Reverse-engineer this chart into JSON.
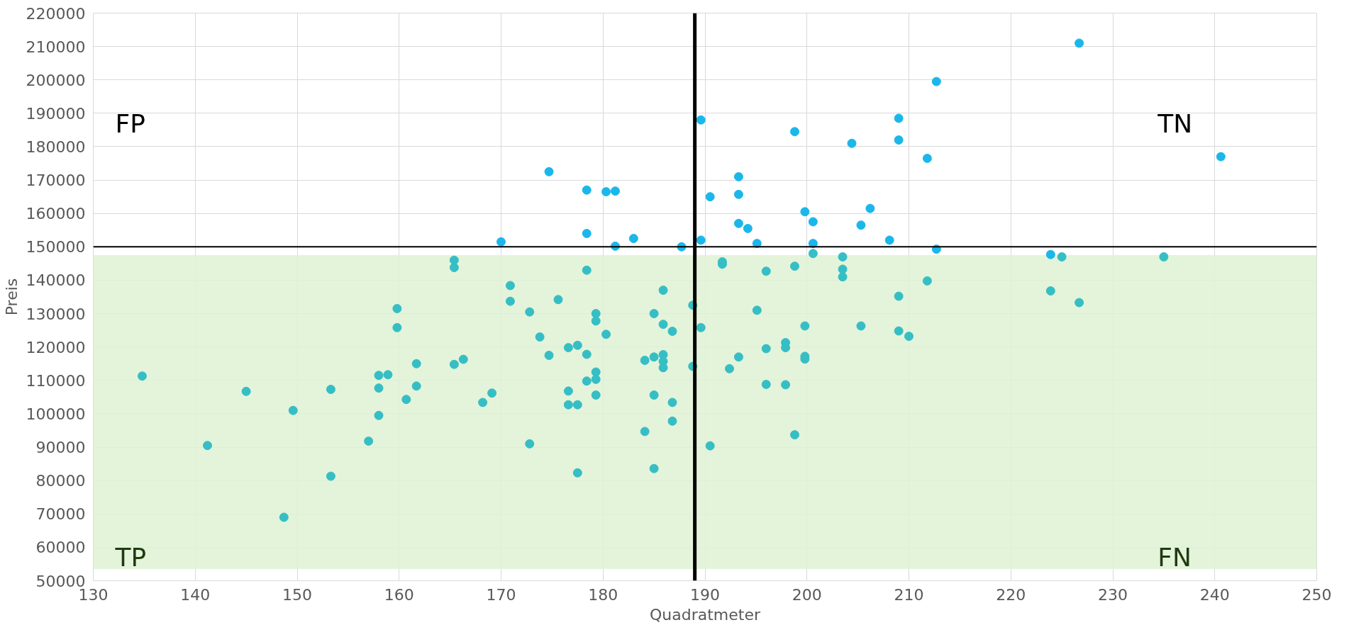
{
  "chart_data": {
    "type": "scatter",
    "xlabel": "Quadratmeter",
    "ylabel": "Preis",
    "xlim": [
      130,
      250
    ],
    "xticks": [
      130,
      140,
      150,
      160,
      170,
      180,
      190,
      200,
      210,
      220,
      230,
      240,
      250
    ],
    "ylim": [
      50000,
      220000
    ],
    "yticks": [
      50000,
      60000,
      70000,
      80000,
      90000,
      100000,
      110000,
      120000,
      130000,
      140000,
      150000,
      160000,
      170000,
      180000,
      190000,
      200000,
      210000,
      220000
    ],
    "grid": true,
    "marker": "circle",
    "ref_lines": [
      {
        "axis": "y",
        "value": 150000,
        "color": "#000000"
      },
      {
        "axis": "x",
        "value": 189,
        "color": "#000000"
      }
    ],
    "bands": [
      {
        "axis": "y",
        "from": 53500,
        "to": 147500,
        "color": "#dff2d3"
      }
    ],
    "annotations": [
      "FP",
      "TN",
      "TP",
      "FN"
    ],
    "series": [
      {
        "color": "#1bb7ea",
        "x": [
          226.7,
          212.7,
          189.6,
          209,
          198.8,
          204.4,
          209,
          211.8,
          240.6,
          174.7,
          193.3,
          178.4,
          180.3,
          181.2,
          193.3,
          190.5,
          206.2,
          199.8,
          200.6,
          193.3,
          194.2,
          205.3,
          170,
          178.4,
          183,
          189.6,
          195.1,
          208.1,
          200.6,
          181.2,
          187.7,
          212.7,
          223.9
        ],
        "values": [
          211000,
          199500,
          188000,
          188500,
          184500,
          181000,
          182000,
          176500,
          177000,
          172500,
          171000,
          167000,
          166500,
          166700,
          165700,
          165000,
          161500,
          160500,
          157500,
          157000,
          155500,
          156500,
          151500,
          154000,
          152500,
          152000,
          151000,
          152000,
          151000,
          150200,
          150000,
          149300,
          147700
        ]
      },
      {
        "color": "#36bec5",
        "x": [
          191.7,
          191.7,
          165.4,
          165.4,
          178.4,
          196,
          198.8,
          203.5,
          203.5,
          200.6,
          203.5,
          225,
          235,
          211.8,
          223.9,
          226.7,
          209,
          170.9,
          170.9,
          175.6,
          185.9,
          188.8,
          159.8,
          172.8,
          179.3,
          179.3,
          185,
          195.1,
          185.9,
          186.8,
          189.6,
          199.8,
          205.3,
          159.8,
          180.3,
          173.8,
          209,
          210,
          176.6,
          177.5,
          196,
          197.9,
          197.9,
          174.7,
          178.4,
          185,
          185.9,
          185.9,
          185.9,
          193.3,
          199.8,
          199.8,
          166.3,
          165.4,
          161.7,
          134.8,
          158,
          158.9,
          179.3,
          179.3,
          178.4,
          184.1,
          188.8,
          192.4,
          158,
          161.7,
          145,
          153.3,
          176.6,
          179.3,
          185,
          196,
          197.9,
          169.1,
          160.7,
          168.2,
          176.6,
          177.5,
          186.8,
          149.6,
          158,
          186.8,
          184.1,
          198.8,
          157,
          141.2,
          172.8,
          190.5,
          153.3,
          177.5,
          185,
          148.7
        ],
        "values": [
          145500,
          144800,
          146000,
          143800,
          143000,
          142700,
          144200,
          143300,
          141000,
          148000,
          147000,
          147000,
          147000,
          139800,
          136800,
          133300,
          135200,
          138400,
          133700,
          134200,
          137000,
          132500,
          131500,
          130500,
          130000,
          127800,
          130000,
          131000,
          126800,
          124700,
          125800,
          126300,
          126300,
          125800,
          123800,
          123000,
          124800,
          123200,
          119800,
          120500,
          119500,
          121300,
          119800,
          117500,
          117800,
          117000,
          117700,
          115700,
          113800,
          117000,
          117200,
          116400,
          116300,
          114800,
          115000,
          111300,
          111500,
          111700,
          112500,
          110300,
          109800,
          116000,
          114200,
          113500,
          107700,
          108300,
          106700,
          107300,
          106800,
          105600,
          105600,
          108800,
          108700,
          106200,
          104300,
          103400,
          102700,
          102700,
          103400,
          101000,
          99500,
          97800,
          94700,
          93700,
          91800,
          90500,
          91000,
          90400,
          81300,
          82300,
          83600,
          69000
        ]
      }
    ]
  }
}
